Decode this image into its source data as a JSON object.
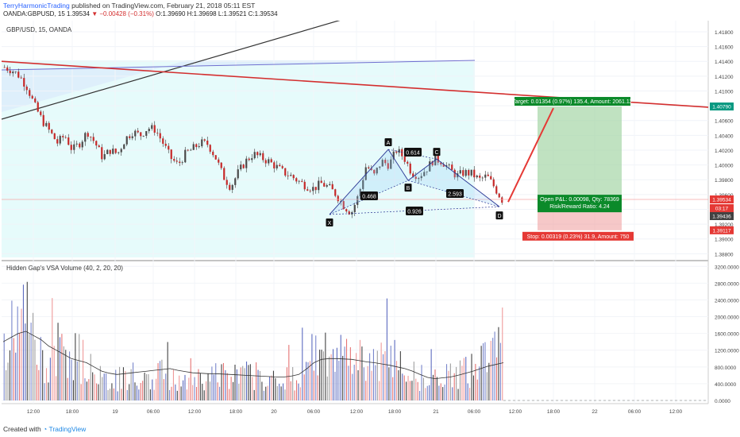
{
  "header": {
    "publisher": "TerryHarmonicTrading",
    "published_text": "published on TradingView.com, February 21, 2018 05:11 EST",
    "symbol_line_prefix": "OANDA:GBPUSD, 15",
    "last": "1.39534",
    "change": "−0.00428 (−0.31%)",
    "ohlc": "O:1.39690 H:1.39698 L:1.39521 C:1.39534"
  },
  "footer": {
    "created_with": "Created with",
    "brand": "TradingView"
  },
  "chart_data": [
    {
      "type": "candlestick",
      "title": "GBP/USD, 15, OANDA",
      "ylim": [
        1.3875,
        1.4195
      ],
      "y_ticks": [
        "1.38800",
        "1.39000",
        "1.39200",
        "1.39400",
        "1.39600",
        "1.39800",
        "1.40000",
        "1.40200",
        "1.40400",
        "1.40600",
        "1.40800",
        "1.41000",
        "1.41200",
        "1.41400",
        "1.41600",
        "1.41800"
      ],
      "x_ticks": [
        "12:00",
        "18:00",
        "19",
        "06:00",
        "12:00",
        "18:00",
        "20",
        "06:00",
        "12:00",
        "18:00",
        "21",
        "06:00",
        "12:00",
        "18:00",
        "22",
        "06:00",
        "12:00"
      ],
      "price_path": [
        1.4132,
        1.4128,
        1.412,
        1.4105,
        1.408,
        1.406,
        1.4045,
        1.403,
        1.404,
        1.402,
        1.403,
        1.4045,
        1.403,
        1.401,
        1.402,
        1.4015,
        1.4035,
        1.4045,
        1.404,
        1.405,
        1.4048,
        1.403,
        1.401,
        1.4,
        1.4015,
        1.4022,
        1.403,
        1.4028,
        1.401,
        1.3985,
        1.397,
        1.399,
        1.4005,
        1.4015,
        1.401,
        1.4005,
        1.3998,
        1.399,
        1.3985,
        1.3978,
        1.3972,
        1.3968,
        1.3975,
        1.397,
        1.396,
        1.3945,
        1.3935,
        1.396,
        1.4,
        1.3985,
        1.4005,
        1.4,
        1.402,
        1.401,
        1.399,
        1.3985,
        1.3995,
        1.4008,
        1.4005,
        1.3995,
        1.3985,
        1.399,
        1.3988,
        1.398,
        1.3985,
        1.397,
        1.3953
      ],
      "pattern": {
        "points": [
          {
            "label": "X",
            "price": 1.3933
          },
          {
            "label": "A",
            "price": 1.4021
          },
          {
            "label": "B",
            "price": 1.3979
          },
          {
            "label": "C",
            "price": 1.4008
          },
          {
            "label": "D",
            "price": 1.39436
          }
        ],
        "ratios": [
          "0.614",
          "0.468",
          "2.593",
          "0.926"
        ]
      },
      "position": {
        "target_label": "Target: 0.01354 (0.97%) 135.4, Amount: 2061.12",
        "target_price": 1.4079,
        "entry_label": "Open P&L: 0.00098, Qty: 78369",
        "rr_label": "Risk/Reward Ratio: 4.24",
        "entry_price": 1.39436,
        "stop_label": "Stop: 0.00319 (0.23%) 31.9, Amount: 750",
        "stop_price": 1.39117
      },
      "price_badges": [
        {
          "text": "1.40790",
          "price": 1.4079,
          "color": "#089981"
        },
        {
          "text": "1.39534",
          "price": 1.39534,
          "color": "#e53935"
        },
        {
          "text": "03:17",
          "price": 1.3944,
          "color": "#e53935"
        },
        {
          "text": "1.39436",
          "price": 1.3933,
          "color": "#424242"
        },
        {
          "text": "1.39117",
          "price": 1.39117,
          "color": "#e53935"
        }
      ],
      "trendlines": [
        {
          "from": 1.414,
          "to": 1.4078,
          "color": "#d32f2f"
        }
      ]
    },
    {
      "type": "bar",
      "title": "Hidden Gap's VSA Volume (40, 2, 20, 20)",
      "ylim": [
        0,
        3300
      ],
      "y_ticks": [
        "0.0000",
        "400.0000",
        "800.0000",
        "1200.0000",
        "1600.0000",
        "2000.0000",
        "2400.0000",
        "2800.0000",
        "3200.0000"
      ],
      "volume_path": [
        1500,
        1700,
        1900,
        2400,
        1400,
        1100,
        1000,
        1300,
        1200,
        1250,
        1100,
        1000,
        800,
        600,
        500,
        550,
        600,
        650,
        550,
        600,
        650,
        700,
        600,
        650,
        700,
        750,
        620,
        600,
        680,
        650,
        620,
        600,
        700,
        650,
        600,
        620,
        580,
        560,
        620,
        680,
        900,
        1300,
        1200,
        1100,
        1150,
        1200,
        1250,
        1150,
        1100,
        1050,
        1000,
        1150,
        1000,
        900,
        800,
        650,
        500,
        600,
        650,
        600,
        700,
        750,
        800,
        900,
        1100,
        1300,
        1600
      ],
      "ma_path": [
        1400,
        1500,
        1600,
        1650,
        1550,
        1450,
        1300,
        1200,
        1100,
        1000,
        950,
        900,
        800,
        700,
        650,
        620,
        640,
        660,
        680,
        700,
        720,
        740,
        760,
        720,
        690,
        660,
        650,
        640,
        640,
        630,
        620,
        610,
        600,
        590,
        580,
        570,
        560,
        560,
        580,
        620,
        750,
        900,
        980,
        1000,
        1000,
        990,
        980,
        950,
        920,
        900,
        870,
        840,
        800,
        760,
        700,
        620,
        550,
        520,
        540,
        560,
        600,
        650,
        700,
        760,
        820,
        860,
        900
      ]
    }
  ]
}
